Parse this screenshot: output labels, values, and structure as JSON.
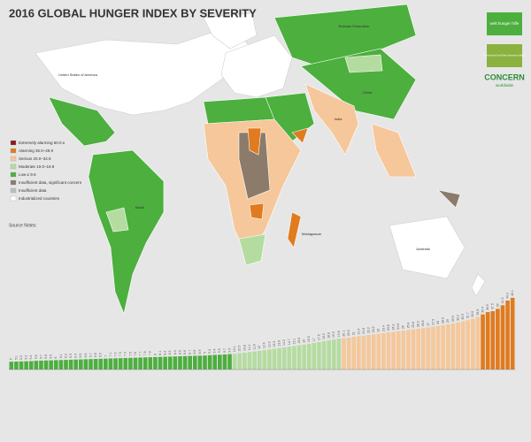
{
  "title": "2016 GLOBAL HUNGER INDEX BY SEVERITY",
  "legend": [
    {
      "label": "Extremely alarming 50.0 ≤",
      "color": "#8b1a1a"
    },
    {
      "label": "Alarming 35.0–49.9",
      "color": "#e07b1f"
    },
    {
      "label": "Serious 20.0–34.9",
      "color": "#f5c79a"
    },
    {
      "label": "Moderate 10.0–19.9",
      "color": "#b5dca0"
    },
    {
      "label": "Low ≤ 9.9",
      "color": "#4caf3e"
    },
    {
      "label": "Insufficient data, significant concern",
      "color": "#8c7b6b"
    },
    {
      "label": "Insufficient data",
      "color": "#bdbdbd"
    },
    {
      "label": "Industrialized countries",
      "color": "#ffffff"
    }
  ],
  "notes_title": "Source Notes:",
  "map_labels": [
    "United States of America",
    "Brazil",
    "Russian Federation",
    "China",
    "India",
    "Madagascar",
    "Australia"
  ],
  "logos": [
    "welt hunger hilfe",
    "International Food Policy Research Institute",
    "CONCERN",
    "worldwide"
  ],
  "chart_data": {
    "type": "bar",
    "ylim": [
      0,
      50
    ],
    "groups": [
      {
        "color": "#4caf3e",
        "values": [
          5.0,
          5.1,
          5.2,
          5.3,
          5.4,
          5.6,
          5.7,
          5.8,
          5.9,
          6.0,
          6.1,
          6.2,
          6.3,
          6.4,
          6.5,
          6.6,
          6.7,
          6.8,
          6.9,
          7.0,
          7.1,
          7.2,
          7.3,
          7.4,
          7.5,
          7.6,
          7.7,
          7.8,
          7.9,
          8.0,
          8.1,
          8.2,
          8.3,
          8.4,
          8.5,
          8.6,
          8.7,
          8.8,
          8.9,
          9.0,
          9.2,
          9.4,
          9.5,
          9.7,
          9.9
        ]
      },
      {
        "color": "#b5dca0",
        "values": [
          10.1,
          10.5,
          10.8,
          11.2,
          11.6,
          12.0,
          12.4,
          12.9,
          13.3,
          13.8,
          14.2,
          14.7,
          15.1,
          15.6,
          16.0,
          16.5,
          17.0,
          17.6,
          18.2,
          18.8,
          19.3,
          19.8
        ]
      },
      {
        "color": "#f5c79a",
        "values": [
          20.1,
          20.5,
          21.0,
          21.4,
          21.8,
          22.2,
          22.6,
          23.0,
          23.4,
          23.8,
          24.2,
          24.6,
          25.0,
          25.4,
          25.8,
          26.2,
          26.6,
          27.0,
          27.5,
          28.0,
          28.5,
          29.0,
          29.6,
          30.2,
          30.9,
          31.7,
          32.6,
          33.8
        ]
      },
      {
        "color": "#e07b1f",
        "values": [
          35.4,
          36.9,
          37.5,
          39.0,
          41.3,
          44.3,
          46.1
        ]
      }
    ]
  }
}
